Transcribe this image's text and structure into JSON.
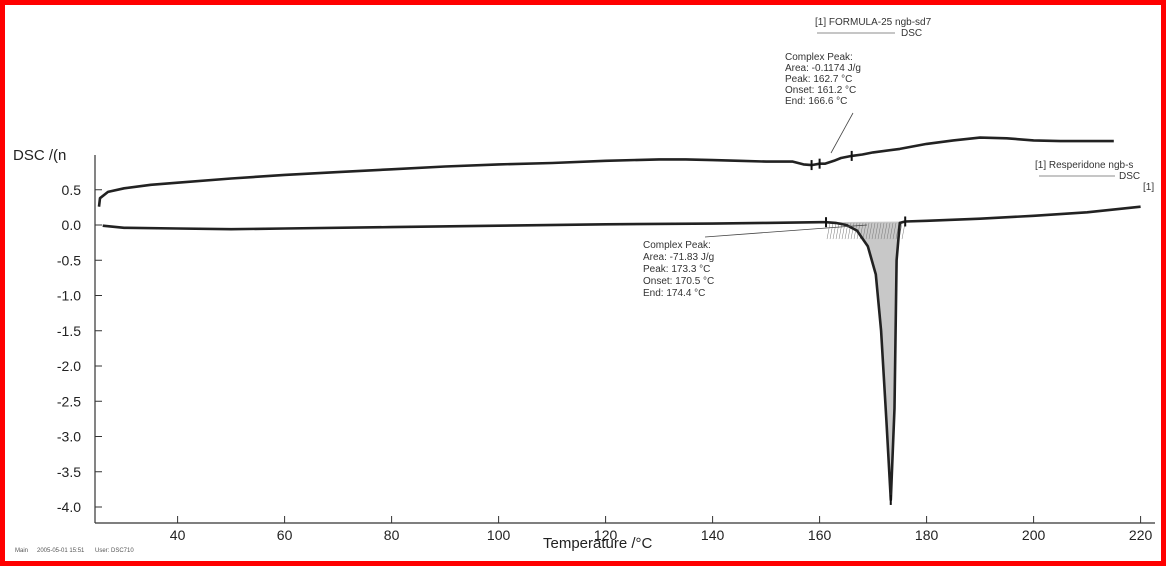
{
  "chart_data": {
    "type": "line",
    "xlabel": "Temperature /°C",
    "ylabel": "DSC /(n",
    "xlim": [
      24,
      222
    ],
    "ylim": [
      -4.2,
      1.0
    ],
    "x_ticks": [
      40,
      60,
      80,
      100,
      120,
      140,
      160,
      180,
      200,
      220
    ],
    "y_ticks": [
      0.5,
      0.0,
      -0.5,
      -1.0,
      -1.5,
      -2.0,
      -2.5,
      -3.0,
      -3.5,
      -4.0
    ],
    "y_tick_labels": [
      "0.5",
      "0.0",
      "-0.5",
      "-1.0",
      "-1.5",
      "-2.0",
      "-2.5",
      "-3.0",
      "-3.5",
      "-4.0"
    ],
    "series": [
      {
        "name": "[1] FORMULA-25 ngb-sd7",
        "legend_sub": "DSC",
        "color": "#222222",
        "x": [
          25.3,
          25.5,
          27,
          30,
          35,
          40,
          50,
          60,
          70,
          80,
          90,
          100,
          110,
          120,
          130,
          135,
          140,
          145,
          150,
          153,
          155,
          157,
          158.5,
          160,
          161,
          162.7,
          164,
          166,
          168,
          170,
          175,
          180,
          185,
          190,
          195,
          200,
          205,
          210,
          215
        ],
        "y": [
          0.26,
          0.38,
          0.47,
          0.52,
          0.57,
          0.6,
          0.66,
          0.71,
          0.75,
          0.79,
          0.83,
          0.86,
          0.88,
          0.91,
          0.93,
          0.93,
          0.92,
          0.91,
          0.9,
          0.9,
          0.9,
          0.86,
          0.85,
          0.87,
          0.87,
          0.91,
          0.95,
          0.98,
          1.0,
          1.03,
          1.08,
          1.15,
          1.2,
          1.24,
          1.23,
          1.2,
          1.19,
          1.19,
          1.19
        ]
      },
      {
        "name": "[1] Resperidone ngb-s",
        "legend_sub": "DSC",
        "color": "#222222",
        "x": [
          26,
          30,
          40,
          50,
          60,
          80,
          100,
          120,
          140,
          150,
          160,
          161.2,
          163,
          165,
          167,
          169,
          170.5,
          171.5,
          172.5,
          173.3,
          174.0,
          174.4,
          175,
          176,
          180,
          190,
          200,
          210,
          220
        ],
        "y": [
          -0.01,
          -0.04,
          -0.05,
          -0.06,
          -0.05,
          -0.03,
          -0.01,
          0.01,
          0.02,
          0.03,
          0.04,
          0.04,
          0.03,
          0.0,
          -0.08,
          -0.3,
          -0.7,
          -1.5,
          -2.8,
          -3.9,
          -2.6,
          -0.5,
          0.03,
          0.05,
          0.06,
          0.09,
          0.13,
          0.18,
          0.26
        ]
      }
    ],
    "annotations": [
      {
        "lines": [
          "Complex Peak:",
          "Area:      -0.1174 J/g",
          "Peak:   162.7 °C",
          "Onset:  161.2 °C",
          "End:     166.6 °C"
        ]
      },
      {
        "lines": [
          "Complex Peak:",
          "Area:      -71.83 J/g",
          "Peak:   173.3 °C",
          "Onset:  170.5 °C",
          "End:     174.4 °C"
        ]
      }
    ],
    "series_tag": "[1]",
    "footer": {
      "left": "Main",
      "date": "2005-05-01 15:51",
      "user": "User: DSC710"
    }
  }
}
